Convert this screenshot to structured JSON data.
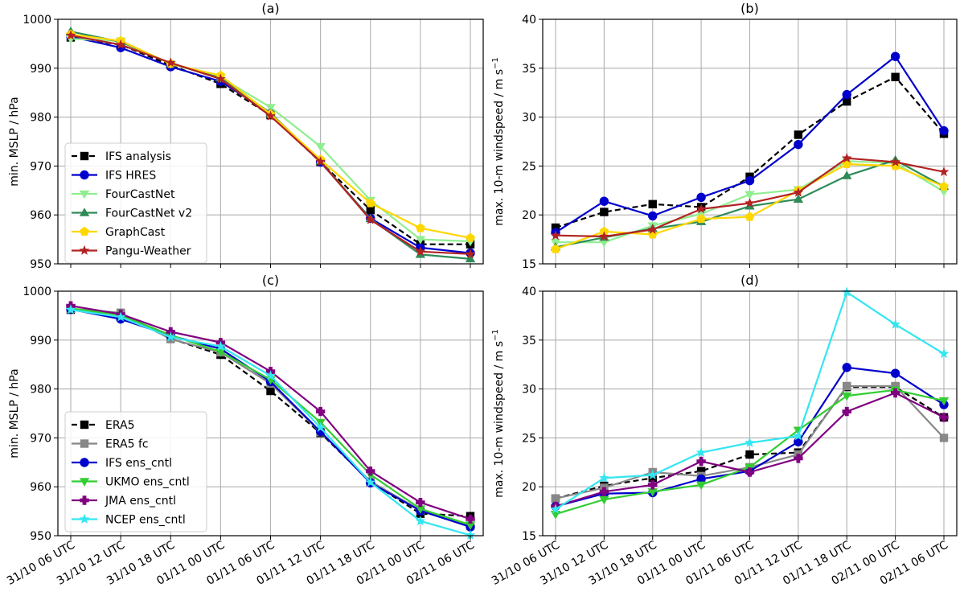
{
  "x_categories": [
    "31/10 06 UTC",
    "31/10 12 UTC",
    "31/10 18 UTC",
    "01/11 00 UTC",
    "01/11 06 UTC",
    "01/11 12 UTC",
    "01/11 18 UTC",
    "02/11 00 UTC",
    "02/11 06 UTC"
  ],
  "chart_data": [
    {
      "type": "line",
      "panel_label": "(a)",
      "ylabel": "min. MSLP / hPa",
      "ylim": [
        950,
        1000
      ],
      "yticks": [
        950,
        960,
        970,
        980,
        990,
        1000
      ],
      "grid": true,
      "legend_position": "lower-left",
      "series": [
        {
          "name": "IFS analysis",
          "color": "#000000",
          "dashed": true,
          "marker": "square",
          "values": [
            996.3,
            994.8,
            990.6,
            986.8,
            980.4,
            970.8,
            961.0,
            954.0,
            954.0
          ]
        },
        {
          "name": "IFS HRES",
          "color": "#0000cc",
          "dashed": false,
          "marker": "circle",
          "values": [
            996.5,
            994.2,
            990.3,
            987.3,
            980.7,
            970.8,
            959.3,
            953.3,
            952.2
          ]
        },
        {
          "name": "FourCastNet",
          "color": "#90ee90",
          "dashed": false,
          "marker": "triangle-down",
          "values": [
            996.0,
            995.6,
            990.9,
            988.1,
            982.0,
            974.0,
            963.0,
            955.0,
            954.6
          ]
        },
        {
          "name": "FourCastNet v2",
          "color": "#2e8b57",
          "dashed": false,
          "marker": "triangle-up",
          "values": [
            997.5,
            995.4,
            991.0,
            988.0,
            980.8,
            971.0,
            959.2,
            951.9,
            951.0
          ]
        },
        {
          "name": "GraphCast",
          "color": "#ffd700",
          "dashed": false,
          "marker": "pentagon",
          "values": [
            996.9,
            995.6,
            990.9,
            988.5,
            980.6,
            971.3,
            962.4,
            957.3,
            955.3
          ]
        },
        {
          "name": "Pangu-Weather",
          "color": "#b22222",
          "dashed": false,
          "marker": "star",
          "values": [
            996.7,
            994.8,
            991.1,
            987.8,
            980.2,
            970.9,
            959.0,
            952.5,
            952.0
          ]
        }
      ]
    },
    {
      "type": "line",
      "panel_label": "(b)",
      "ylabel": "max. 10-m windspeed / m s",
      "ylabel_sup": "−1",
      "ylim": [
        15,
        40
      ],
      "yticks": [
        15,
        20,
        25,
        30,
        35,
        40
      ],
      "grid": true,
      "legend_position": "none",
      "series": [
        {
          "name": "IFS analysis",
          "color": "#000000",
          "dashed": true,
          "marker": "square",
          "values": [
            18.7,
            20.3,
            21.1,
            20.8,
            23.9,
            28.2,
            31.6,
            34.1,
            28.3
          ]
        },
        {
          "name": "IFS HRES",
          "color": "#0000cc",
          "dashed": false,
          "marker": "circle",
          "values": [
            18.2,
            21.4,
            19.9,
            21.8,
            23.5,
            27.2,
            32.3,
            36.2,
            28.6
          ]
        },
        {
          "name": "FourCastNet",
          "color": "#90ee90",
          "dashed": false,
          "marker": "triangle-down",
          "values": [
            17.2,
            17.2,
            18.9,
            20.1,
            22.1,
            22.6,
            25.5,
            25.3,
            22.4
          ]
        },
        {
          "name": "FourCastNet v2",
          "color": "#2e8b57",
          "dashed": false,
          "marker": "triangle-up",
          "values": [
            16.7,
            17.7,
            18.6,
            19.3,
            20.9,
            21.6,
            24.0,
            25.6,
            22.9
          ]
        },
        {
          "name": "GraphCast",
          "color": "#ffd700",
          "dashed": false,
          "marker": "pentagon",
          "values": [
            16.5,
            18.3,
            18.0,
            19.6,
            19.8,
            22.5,
            25.2,
            25.0,
            22.9
          ]
        },
        {
          "name": "Pangu-Weather",
          "color": "#b22222",
          "dashed": false,
          "marker": "star",
          "values": [
            17.9,
            17.8,
            18.5,
            20.6,
            21.2,
            22.3,
            25.8,
            25.4,
            24.4
          ]
        }
      ]
    },
    {
      "type": "line",
      "panel_label": "(c)",
      "ylabel": "min. MSLP / hPa",
      "ylim": [
        950,
        1000
      ],
      "yticks": [
        950,
        960,
        970,
        980,
        990,
        1000
      ],
      "grid": true,
      "legend_position": "lower-left",
      "series": [
        {
          "name": "ERA5",
          "color": "#000000",
          "dashed": true,
          "marker": "square",
          "values": [
            996.2,
            995.3,
            990.3,
            987.0,
            979.6,
            971.0,
            961.0,
            954.5,
            954.0
          ]
        },
        {
          "name": "ERA5 fc",
          "color": "#888888",
          "dashed": false,
          "marker": "square",
          "values": [
            996.4,
            995.6,
            990.2,
            987.5,
            981.1,
            971.2,
            961.1,
            955.2,
            952.0
          ]
        },
        {
          "name": "IFS ens_cntl",
          "color": "#0000cc",
          "dashed": false,
          "marker": "circle",
          "values": [
            996.3,
            994.3,
            990.9,
            988.2,
            981.5,
            971.3,
            960.8,
            955.1,
            951.8
          ]
        },
        {
          "name": "UKMO ens_cntl",
          "color": "#32cd32",
          "dashed": false,
          "marker": "triangle-down",
          "values": [
            996.5,
            995.1,
            991.0,
            987.6,
            981.9,
            973.2,
            962.5,
            955.5,
            952.2
          ]
        },
        {
          "name": "JMA ens_cntl",
          "color": "#800080",
          "dashed": false,
          "marker": "plus",
          "values": [
            997.0,
            995.3,
            991.7,
            989.5,
            983.6,
            975.4,
            963.2,
            956.8,
            953.4
          ]
        },
        {
          "name": "NCEP ens_cntl",
          "color": "#33e6f0",
          "dashed": false,
          "marker": "star",
          "values": [
            996.2,
            994.7,
            990.6,
            988.7,
            982.7,
            972.1,
            960.9,
            953.0,
            950.1
          ]
        }
      ]
    },
    {
      "type": "line",
      "panel_label": "(d)",
      "ylabel": "max. 10-m windspeed / m s",
      "ylabel_sup": "−1",
      "ylim": [
        15,
        40
      ],
      "yticks": [
        15,
        20,
        25,
        30,
        35,
        40
      ],
      "grid": true,
      "legend_position": "none",
      "series": [
        {
          "name": "ERA5",
          "color": "#000000",
          "dashed": true,
          "marker": "square",
          "values": [
            18.8,
            20.1,
            20.9,
            21.6,
            23.3,
            23.5,
            30.2,
            30.2,
            27.1
          ]
        },
        {
          "name": "ERA5 fc",
          "color": "#888888",
          "dashed": false,
          "marker": "square",
          "values": [
            18.8,
            19.9,
            21.5,
            21.1,
            22.0,
            23.3,
            30.3,
            30.3,
            25.0
          ]
        },
        {
          "name": "IFS ens_cntl",
          "color": "#0000cc",
          "dashed": false,
          "marker": "circle",
          "values": [
            18.0,
            19.3,
            19.4,
            20.8,
            21.6,
            24.6,
            32.2,
            31.6,
            28.4
          ]
        },
        {
          "name": "UKMO ens_cntl",
          "color": "#32cd32",
          "dashed": false,
          "marker": "triangle-down",
          "values": [
            17.2,
            18.7,
            19.5,
            20.2,
            22.0,
            25.8,
            29.3,
            29.9,
            28.8
          ]
        },
        {
          "name": "JMA ens_cntl",
          "color": "#800080",
          "dashed": false,
          "marker": "plus",
          "values": [
            18.0,
            19.5,
            20.2,
            22.6,
            21.5,
            22.9,
            27.7,
            29.6,
            27.1
          ]
        },
        {
          "name": "NCEP ens_cntl",
          "color": "#33e6f0",
          "dashed": false,
          "marker": "star",
          "values": [
            17.7,
            20.9,
            21.2,
            23.5,
            24.5,
            25.2,
            39.9,
            36.6,
            33.6
          ]
        }
      ]
    }
  ]
}
